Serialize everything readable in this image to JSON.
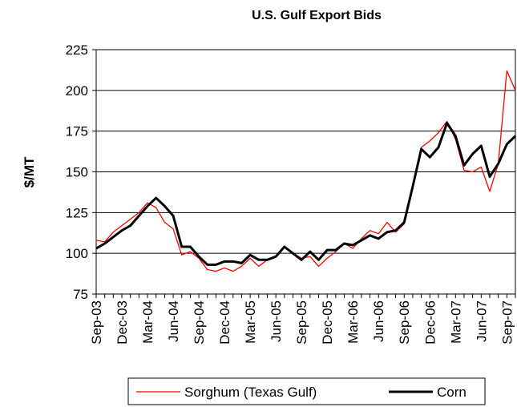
{
  "chart_data": {
    "type": "line",
    "title": "U.S. Gulf Export Bids",
    "y_label": "$/MT",
    "categories": [
      "Sep-03",
      null,
      null,
      "Dec-03",
      null,
      null,
      "Mar-04",
      null,
      null,
      "Jun-04",
      null,
      null,
      "Sep-04",
      null,
      null,
      "Dec-04",
      null,
      null,
      "Mar-05",
      null,
      null,
      "Jun-05",
      null,
      null,
      "Sep-05",
      null,
      null,
      "Dec-05",
      null,
      null,
      "Mar-06",
      null,
      null,
      "Jun-06",
      null,
      null,
      "Sep-06",
      null,
      null,
      "Dec-06",
      null,
      null,
      "Mar-07",
      null,
      null,
      "Jun-07",
      null,
      null,
      "Sep-07",
      null
    ],
    "series": [
      {
        "name": "Sorghum (Texas Gulf)",
        "color": "#ff0000",
        "width": 1.3,
        "values": [
          108,
          107,
          113,
          117,
          121,
          125,
          131,
          128,
          119,
          115,
          99,
          101,
          97,
          90,
          89,
          91,
          89,
          92,
          97,
          92,
          96,
          98,
          104,
          100,
          97,
          98,
          92,
          97,
          101,
          106,
          103,
          109,
          114,
          112,
          119,
          113,
          118,
          141,
          165,
          169,
          174,
          181,
          170,
          151,
          150,
          153,
          138,
          155,
          212,
          200
        ]
      },
      {
        "name": "Corn",
        "color": "#000000",
        "width": 3,
        "values": [
          103,
          106,
          110,
          114,
          117,
          123,
          129,
          134,
          129,
          123,
          104,
          104,
          98,
          93,
          93,
          95,
          95,
          94,
          99,
          96,
          96,
          98,
          104,
          100,
          96,
          101,
          96,
          102,
          102,
          106,
          105,
          108,
          111,
          109,
          113,
          114,
          119,
          141,
          164,
          159,
          165,
          180,
          172,
          154,
          161,
          166,
          147,
          155,
          167,
          172
        ]
      }
    ],
    "ylim": [
      75,
      225
    ],
    "yticks": [
      75,
      100,
      125,
      150,
      175,
      200,
      225
    ],
    "grid": true,
    "legend": "bottom"
  }
}
